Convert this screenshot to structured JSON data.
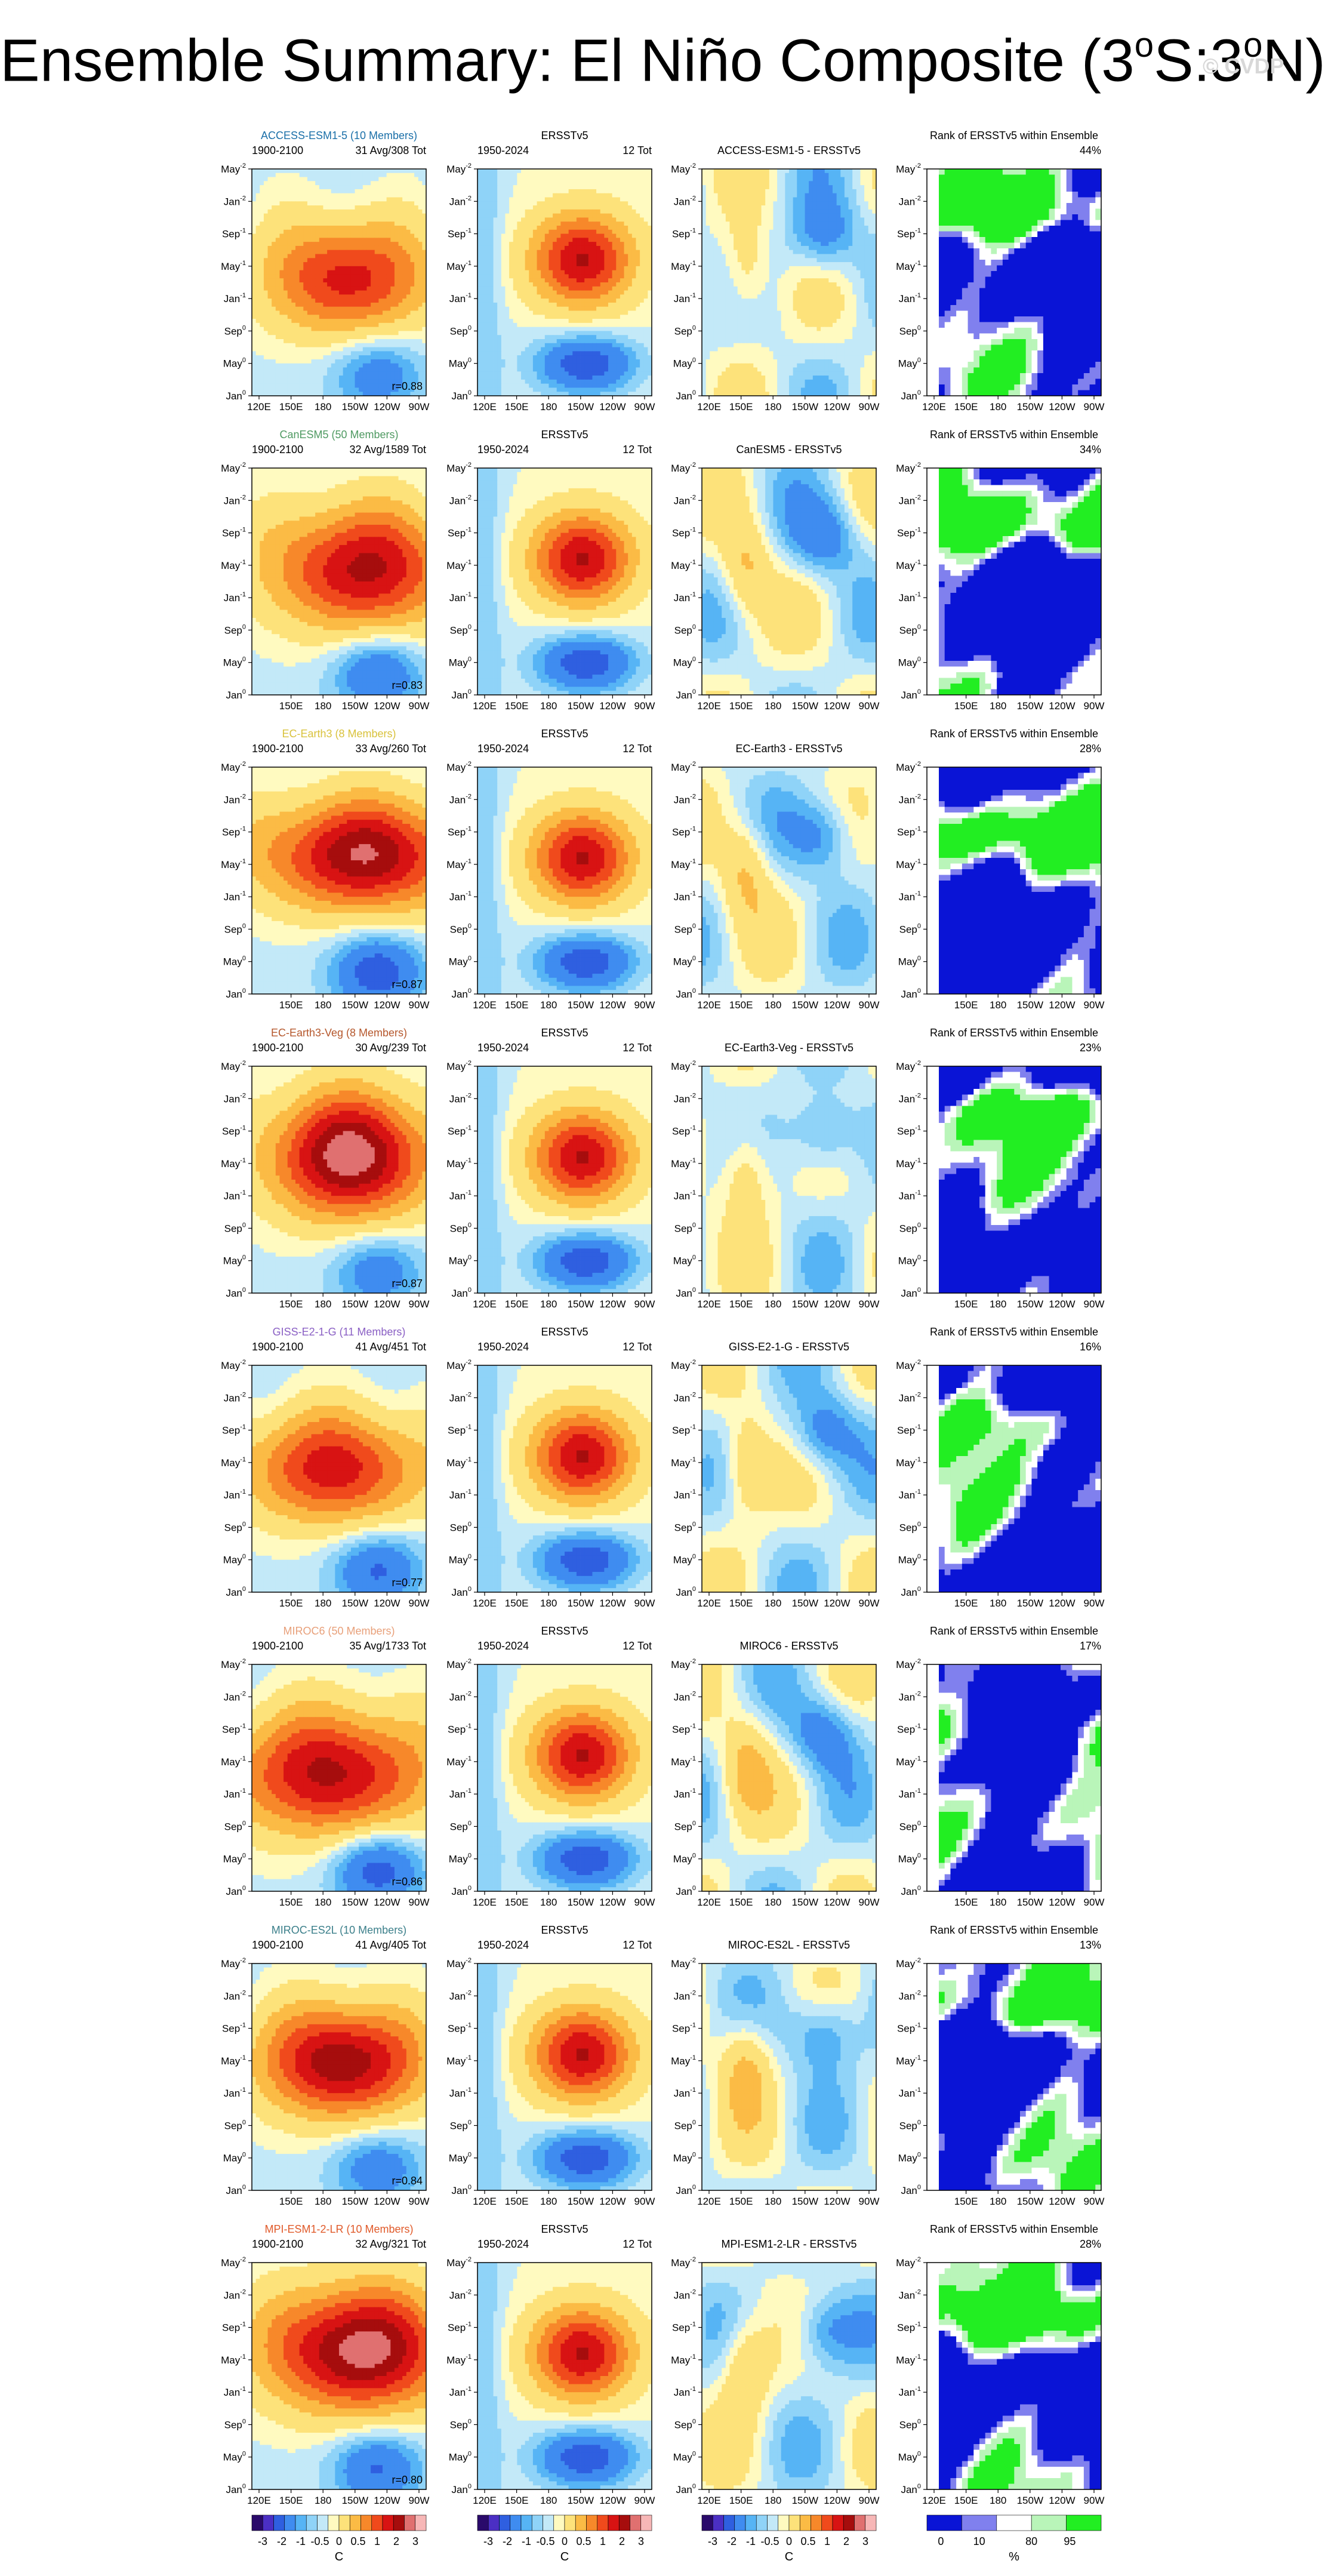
{
  "title": {
    "prefix": "Ensemble Summary: El Niño Composite (3",
    "sup1": "o",
    "mid": "S:3",
    "sup2": "o",
    "suffix": "N)"
  },
  "watermark": "© CVDP",
  "obs": {
    "label": "ERSSTv5",
    "period": "1950-2024",
    "count": "12 Tot"
  },
  "model_period": "1900-2100",
  "rank_title": "Rank of ERSSTv5 within Ensemble",
  "y_ticks": [
    {
      "label": "May",
      "sup": "-2"
    },
    {
      "label": "Jan",
      "sup": "-2"
    },
    {
      "label": "Sep",
      "sup": "-1"
    },
    {
      "label": "May",
      "sup": "-1"
    },
    {
      "label": "Jan",
      "sup": "-1"
    },
    {
      "label": "Sep",
      "sup": "0"
    },
    {
      "label": "May",
      "sup": "0"
    },
    {
      "label": "Jan",
      "sup": "0"
    }
  ],
  "x_ticks_full": [
    "120E",
    "150E",
    "180",
    "150W",
    "120W",
    "90W"
  ],
  "x_ticks_short": [
    "150E",
    "180",
    "150W",
    "120W",
    "90W"
  ],
  "models": [
    {
      "name": "ACCESS-ESM1-5 (10 Members)",
      "color": "#1a6fa8",
      "count": "31 Avg/308 Tot",
      "r": "r=0.88",
      "diff": "ACCESS-ESM1-5 - ERSSTv5",
      "rank": "44%",
      "full_x": true
    },
    {
      "name": "CanESM5 (50 Members)",
      "color": "#4f9a62",
      "count": "32 Avg/1589 Tot",
      "r": "r=0.83",
      "diff": "CanESM5 - ERSSTv5",
      "rank": "34%",
      "full_x": false
    },
    {
      "name": "EC-Earth3 (8 Members)",
      "color": "#d9c23c",
      "count": "33 Avg/260 Tot",
      "r": "r=0.87",
      "diff": "EC-Earth3 - ERSSTv5",
      "rank": "28%",
      "full_x": false
    },
    {
      "name": "EC-Earth3-Veg (8 Members)",
      "color": "#b5572c",
      "count": "30 Avg/239 Tot",
      "r": "r=0.87",
      "diff": "EC-Earth3-Veg - ERSSTv5",
      "rank": "23%",
      "full_x": false
    },
    {
      "name": "GISS-E2-1-G (11 Members)",
      "color": "#8a5fc4",
      "count": "41 Avg/451 Tot",
      "r": "r=0.77",
      "diff": "GISS-E2-1-G - ERSSTv5",
      "rank": "16%",
      "full_x": false
    },
    {
      "name": "MIROC6 (50 Members)",
      "color": "#e8a07a",
      "count": "35 Avg/1733 Tot",
      "r": "r=0.86",
      "diff": "MIROC6 - ERSSTv5",
      "rank": "17%",
      "full_x": false
    },
    {
      "name": "MIROC-ES2L (10 Members)",
      "color": "#3b7f8a",
      "count": "41 Avg/405 Tot",
      "r": "r=0.84",
      "diff": "MIROC-ES2L - ERSSTv5",
      "rank": "13%",
      "full_x": false
    },
    {
      "name": "MPI-ESM1-2-LR (10 Members)",
      "color": "#e05a2a",
      "count": "32 Avg/321 Tot",
      "r": "r=0.80",
      "diff": "MPI-ESM1-2-LR - ERSSTv5",
      "rank": "28%",
      "full_x": true
    }
  ],
  "colorbar_sst": {
    "labels": [
      "-3",
      "-2",
      "-1",
      "-0.5",
      "0",
      "0.5",
      "1",
      "2",
      "3"
    ],
    "unit": "C",
    "colors": [
      "#2a0a6b",
      "#4b2fc4",
      "#2f5fe0",
      "#3f8cf0",
      "#56b4f5",
      "#8fd3f8",
      "#c3e9f8",
      "#fffac0",
      "#fde27a",
      "#fbbb45",
      "#f7882a",
      "#f04a1c",
      "#d81313",
      "#a60d0d",
      "#e07070",
      "#f7b7b7"
    ]
  },
  "colorbar_rank": {
    "labels": [
      "0",
      "10",
      "80",
      "95"
    ],
    "unit": "%",
    "colors": [
      "#0a14d6",
      "#8080ee",
      "#ffffff",
      "#b9f5b9",
      "#22ee22"
    ]
  },
  "chart_data": {
    "type": "heatmap",
    "title": "Ensemble Summary: El Niño Composite (3°S:3°N)",
    "x_ticks": [
      "120E",
      "150E",
      "180",
      "150W",
      "120W",
      "90W"
    ],
    "y_ticks": [
      "May-2",
      "Jan-2",
      "Sep-1",
      "May-1",
      "Jan-1",
      "Sep0",
      "May0",
      "Jan0"
    ],
    "colorbar_levels_C": [
      -3,
      -2,
      -1,
      -0.5,
      0,
      0.5,
      1,
      2,
      3
    ],
    "rank_levels_pct": [
      0,
      10,
      80,
      95
    ],
    "panels": [
      {
        "model": "ACCESS-ESM1-5",
        "members": 10,
        "avg_events": 31,
        "total_events": 308,
        "pattern_corr": 0.88,
        "rank_pct": 44
      },
      {
        "model": "CanESM5",
        "members": 50,
        "avg_events": 32,
        "total_events": 1589,
        "pattern_corr": 0.83,
        "rank_pct": 34
      },
      {
        "model": "EC-Earth3",
        "members": 8,
        "avg_events": 33,
        "total_events": 260,
        "pattern_corr": 0.87,
        "rank_pct": 28
      },
      {
        "model": "EC-Earth3-Veg",
        "members": 8,
        "avg_events": 30,
        "total_events": 239,
        "pattern_corr": 0.87,
        "rank_pct": 23
      },
      {
        "model": "GISS-E2-1-G",
        "members": 11,
        "avg_events": 41,
        "total_events": 451,
        "pattern_corr": 0.77,
        "rank_pct": 16
      },
      {
        "model": "MIROC6",
        "members": 50,
        "avg_events": 35,
        "total_events": 1733,
        "pattern_corr": 0.86,
        "rank_pct": 17
      },
      {
        "model": "MIROC-ES2L",
        "members": 10,
        "avg_events": 41,
        "total_events": 405,
        "pattern_corr": 0.84,
        "rank_pct": 13
      },
      {
        "model": "MPI-ESM1-2-LR",
        "members": 10,
        "avg_events": 32,
        "total_events": 321,
        "pattern_corr": 0.8,
        "rank_pct": 28
      }
    ],
    "observations": {
      "dataset": "ERSSTv5",
      "period": "1950-2024",
      "total_events": 12
    }
  }
}
